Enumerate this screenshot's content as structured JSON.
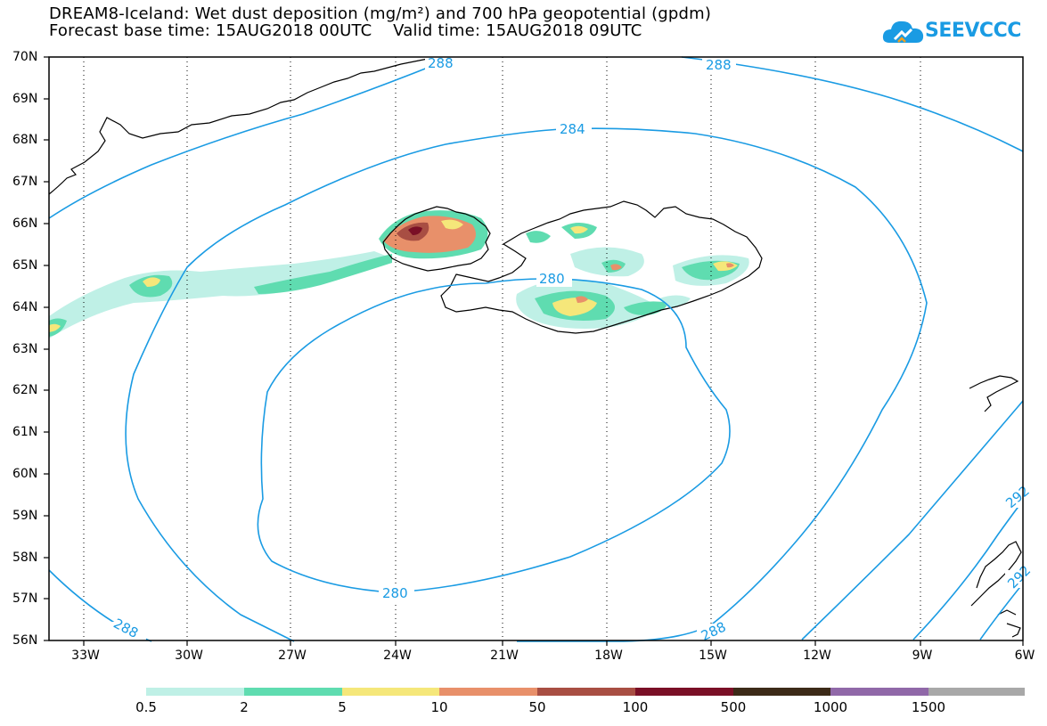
{
  "title": {
    "line1": "DREAM8-Iceland: Wet dust deposition (mg/m²) and 700 hPa geopotential (gpdm)",
    "line2": "Forecast base time: 15AUG2018 00UTC    Valid time: 15AUG2018 09UTC"
  },
  "logo": {
    "text": "SEEVCCC",
    "icon": "cloud-logo-icon",
    "color": "#1a9be3"
  },
  "axes": {
    "lat_labels": [
      "70N",
      "69N",
      "68N",
      "67N",
      "66N",
      "65N",
      "64N",
      "63N",
      "62N",
      "61N",
      "60N",
      "59N",
      "58N",
      "57N",
      "56N"
    ],
    "lon_labels": [
      "33W",
      "30W",
      "27W",
      "24W",
      "21W",
      "18W",
      "15W",
      "12W",
      "9W",
      "6W"
    ]
  },
  "contours": {
    "color": "#1a9be3",
    "labels": [
      "288",
      "288",
      "284",
      "280",
      "280",
      "288",
      "288",
      "292",
      "292"
    ]
  },
  "colorbar": {
    "colors": [
      "#bff0e6",
      "#5fdcb0",
      "#f5e77a",
      "#e8906a",
      "#a84e43",
      "#7a0f26",
      "#3c2a18",
      "#9068a8",
      "#a8a8a8"
    ],
    "labels": [
      "0.5",
      "2",
      "5",
      "10",
      "50",
      "100",
      "500",
      "1000",
      "1500"
    ]
  }
}
